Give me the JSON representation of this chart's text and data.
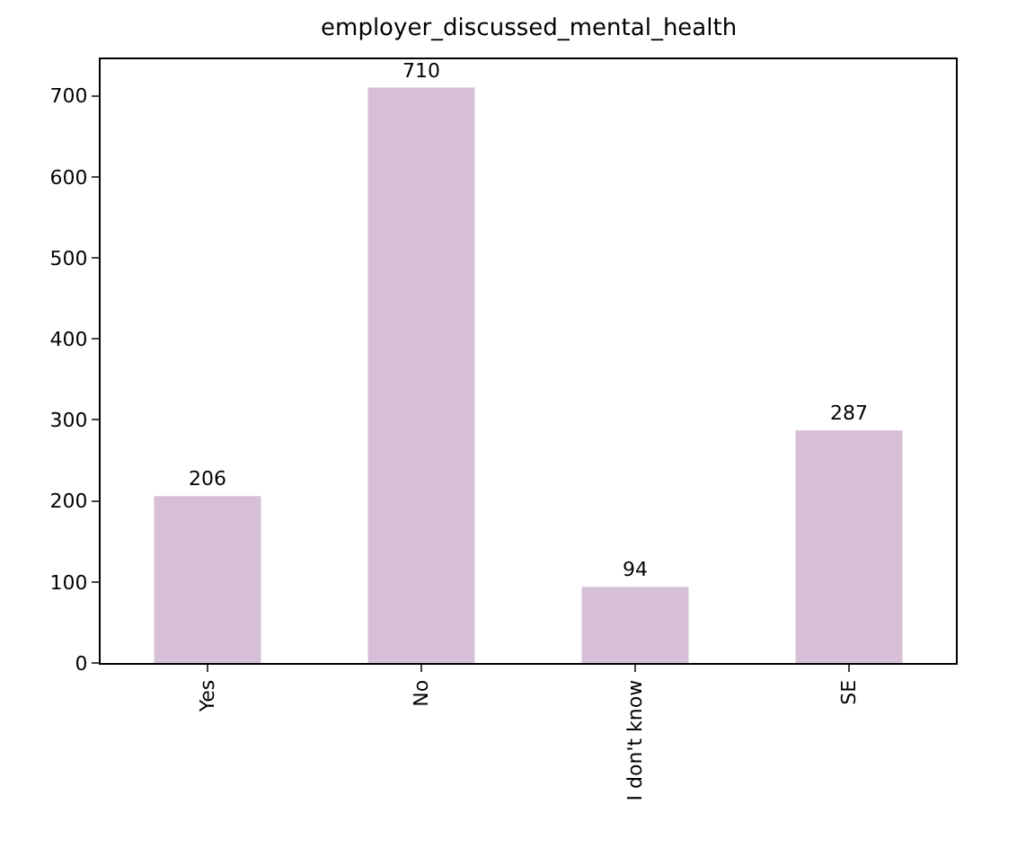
{
  "chart_data": {
    "type": "bar",
    "title": "employer_discussed_mental_health",
    "categories": [
      "Yes",
      "No",
      "I don't know",
      "SE"
    ],
    "values": [
      206,
      710,
      94,
      287
    ],
    "color": "#d8bfd8",
    "ylim": [
      0,
      745
    ],
    "yticks": [
      0,
      100,
      200,
      300,
      400,
      500,
      600,
      700
    ],
    "grid": false,
    "data_labels": true
  }
}
